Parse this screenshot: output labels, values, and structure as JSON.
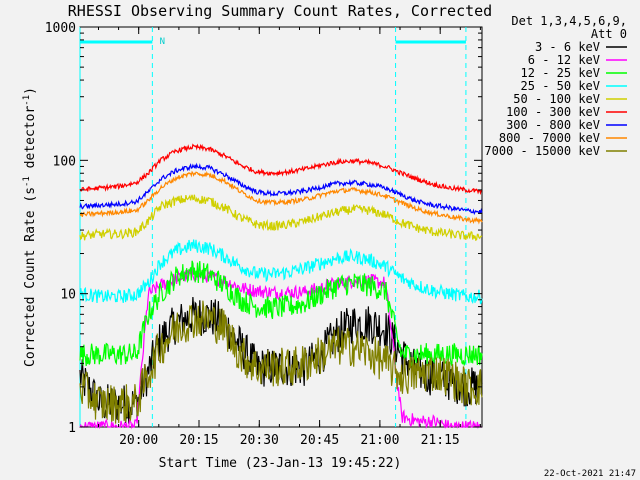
{
  "chart_data": {
    "type": "line",
    "title": "RHESSI Observing Summary Count Rates, Corrected",
    "xlabel": "Start Time (23-Jan-13 19:45:22)",
    "ylabel": "Corrected Count Rate (s⁻¹ detector⁻¹)",
    "ylabel_parts": [
      "Corrected Count Rate (s",
      "-1",
      " detector",
      "-1",
      ")"
    ],
    "yscale": "log",
    "ylim": [
      1,
      1000
    ],
    "xlim_minutes": [
      0,
      100
    ],
    "xticks": [
      {
        "t": 14.6,
        "label": "20:00"
      },
      {
        "t": 29.6,
        "label": "20:15"
      },
      {
        "t": 44.6,
        "label": "20:30"
      },
      {
        "t": 59.6,
        "label": "20:45"
      },
      {
        "t": 74.6,
        "label": "21:00"
      },
      {
        "t": 89.6,
        "label": "21:15"
      }
    ],
    "yticks": [
      {
        "v": 1,
        "label": "1"
      },
      {
        "v": 10,
        "label": "10"
      },
      {
        "v": 100,
        "label": "100"
      },
      {
        "v": 1000,
        "label": "1000"
      }
    ],
    "legend_header": [
      "Det 1,3,4,5,6,9,",
      "Att 0"
    ],
    "legend_position": "right",
    "night_flag_label": "N",
    "night_intervals_minutes": [
      [
        0,
        18
      ],
      [
        78.5,
        96
      ]
    ],
    "footer_date": "22-Oct-2021 21:47",
    "sample_times_minutes": [
      0,
      5,
      10,
      14,
      17,
      20,
      24,
      28,
      32,
      36,
      40,
      44,
      48,
      52,
      56,
      60,
      64,
      68,
      72,
      76,
      80,
      84,
      88,
      92,
      96,
      100
    ],
    "series": [
      {
        "name": "3 - 6 keV",
        "color": "#000000",
        "noise": 0.35,
        "values": [
          2.4,
          1.5,
          1.5,
          1.5,
          2.6,
          4.5,
          6.0,
          6.8,
          6.8,
          6.0,
          4.0,
          2.8,
          2.8,
          2.8,
          2.8,
          3.5,
          5.0,
          6.0,
          6.0,
          5.5,
          3.5,
          2.6,
          2.4,
          2.2,
          2.0,
          2.0
        ]
      },
      {
        "name": "6 - 12 keV",
        "color": "#ff00ff",
        "noise": 0.12,
        "values": [
          1.0,
          1.0,
          1.0,
          1.0,
          10.0,
          11.5,
          13.0,
          14.0,
          13.5,
          12.5,
          11.0,
          10.5,
          10.2,
          10.2,
          10.3,
          11.0,
          12.0,
          12.5,
          12.5,
          12.0,
          1.2,
          1.1,
          1.1,
          1.0,
          1.0,
          1.0
        ]
      },
      {
        "name": "12 - 25 keV",
        "color": "#00ff00",
        "noise": 0.2,
        "values": [
          3.5,
          3.5,
          3.5,
          3.5,
          7.0,
          10.0,
          13.5,
          15.0,
          14.0,
          11.5,
          9.0,
          8.0,
          7.8,
          8.0,
          8.5,
          10.0,
          11.5,
          12.0,
          11.5,
          10.5,
          3.5,
          3.5,
          3.5,
          3.5,
          3.5,
          3.5
        ]
      },
      {
        "name": "25 - 50 keV",
        "color": "#00ffff",
        "noise": 0.12,
        "values": [
          10.0,
          9.5,
          9.5,
          9.8,
          12.0,
          17.0,
          21.0,
          23.0,
          22.0,
          19.0,
          16.0,
          14.0,
          14.0,
          14.5,
          15.5,
          17.0,
          18.5,
          19.0,
          18.0,
          16.0,
          13.0,
          11.5,
          10.5,
          10.0,
          9.5,
          9.5
        ]
      },
      {
        "name": "50 - 100 keV",
        "color": "#d0d000",
        "noise": 0.08,
        "values": [
          27.0,
          28.0,
          28.0,
          29.0,
          35.0,
          45.0,
          50.0,
          52.0,
          50.0,
          44.0,
          37.0,
          33.0,
          32.0,
          33.0,
          35.0,
          38.0,
          41.0,
          43.0,
          42.0,
          39.0,
          34.0,
          31.0,
          29.0,
          28.0,
          27.0,
          27.0
        ]
      },
      {
        "name": "100 - 300 keV",
        "color": "#ff0000",
        "noise": 0.04,
        "values": [
          60.0,
          62.0,
          64.0,
          68.0,
          80.0,
          100.0,
          118.0,
          126.0,
          122.0,
          108.0,
          92.0,
          82.0,
          80.0,
          82.0,
          86.0,
          92.0,
          97.0,
          99.0,
          96.0,
          90.0,
          80.0,
          72.0,
          66.0,
          62.0,
          60.0,
          58.0
        ]
      },
      {
        "name": "300 - 800 keV",
        "color": "#0000ff",
        "noise": 0.04,
        "values": [
          45.0,
          46.0,
          47.0,
          49.0,
          58.0,
          72.0,
          84.0,
          90.0,
          88.0,
          78.0,
          66.0,
          58.0,
          56.0,
          57.0,
          59.0,
          63.0,
          67.0,
          68.0,
          66.0,
          62.0,
          55.0,
          49.0,
          46.0,
          44.0,
          42.0,
          41.0
        ]
      },
      {
        "name": "800 - 7000 keV",
        "color": "#ff8800",
        "noise": 0.04,
        "values": [
          39.0,
          40.0,
          41.0,
          42.0,
          50.0,
          62.0,
          74.0,
          80.0,
          78.0,
          70.0,
          58.0,
          50.0,
          48.0,
          49.0,
          51.0,
          55.0,
          59.0,
          60.0,
          58.0,
          54.0,
          48.0,
          43.0,
          40.0,
          38.0,
          36.0,
          35.0
        ]
      },
      {
        "name": "7000 - 15000 keV",
        "color": "#808000",
        "noise": 0.35,
        "values": [
          2.0,
          1.5,
          1.5,
          1.5,
          2.5,
          4.0,
          5.5,
          6.5,
          6.5,
          5.5,
          3.5,
          2.8,
          2.8,
          2.8,
          3.0,
          3.5,
          4.0,
          4.0,
          3.6,
          3.0,
          2.4,
          2.5,
          2.6,
          2.4,
          2.0,
          2.0
        ]
      }
    ]
  }
}
